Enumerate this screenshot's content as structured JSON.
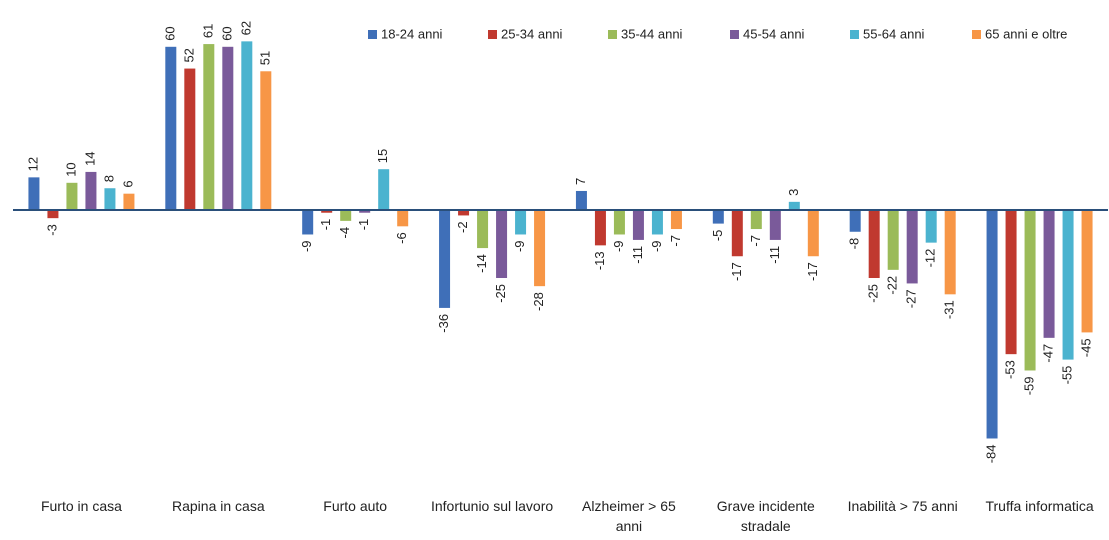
{
  "chart_data": {
    "type": "bar",
    "categories": [
      "Furto in casa",
      "Rapina in casa",
      "Furto auto",
      "Infortunio sul lavoro",
      "Alzheimer > 65 anni",
      "Grave incidente stradale",
      "Inabilità > 75 anni",
      "Truffa informatica"
    ],
    "series": [
      {
        "name": "18-24 anni",
        "color": "#3f6fb8",
        "values": [
          12,
          60,
          -9,
          -36,
          7,
          -5,
          -8,
          -84
        ]
      },
      {
        "name": "25-34 anni",
        "color": "#c0392f",
        "values": [
          -3,
          52,
          -1,
          -2,
          -13,
          -17,
          -25,
          -53
        ]
      },
      {
        "name": "35-44 anni",
        "color": "#9bbb59",
        "values": [
          10,
          61,
          -4,
          -14,
          -9,
          -7,
          -22,
          -59
        ]
      },
      {
        "name": "45-54 anni",
        "color": "#7a5a9a",
        "values": [
          14,
          60,
          -1,
          -25,
          -11,
          -11,
          -27,
          -47
        ]
      },
      {
        "name": "55-64 anni",
        "color": "#4bb3cf",
        "values": [
          8,
          62,
          15,
          -9,
          -9,
          3,
          -12,
          -55
        ]
      },
      {
        "name": "65 anni e oltre",
        "color": "#f79646",
        "values": [
          6,
          51,
          -6,
          -28,
          -7,
          -17,
          -31,
          -45
        ]
      }
    ]
  }
}
